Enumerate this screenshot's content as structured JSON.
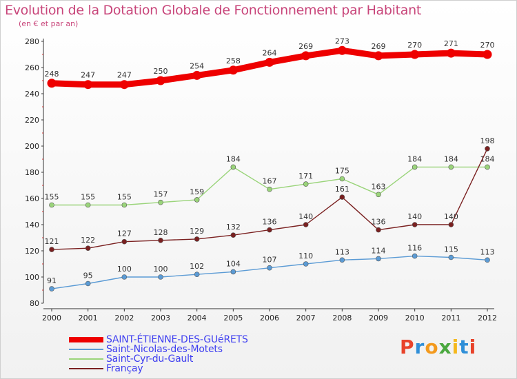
{
  "header": {
    "title": "Evolution de la Dotation Globale de Fonctionnement par Habitant",
    "subtitle": "(en € et par an)"
  },
  "brand": {
    "letters": [
      "P",
      "r",
      "o",
      "x",
      "i",
      "t",
      "i"
    ],
    "colors": [
      "#e8432a",
      "#2f8fd8",
      "#f39a1e",
      "#4aa83f",
      "#f5b81c",
      "#2f8fd8",
      "#e8432a"
    ]
  },
  "chart_data": {
    "type": "line",
    "title": "Evolution de la Dotation Globale de Fonctionnement par Habitant",
    "subtitle": "(en € et par an)",
    "xlabel": "",
    "ylabel": "",
    "ylim": [
      80,
      280
    ],
    "yticks": [
      80,
      100,
      120,
      140,
      160,
      180,
      200,
      220,
      240,
      260,
      280
    ],
    "grid": false,
    "legend": "bottom-left",
    "categories": [
      "2000",
      "2001",
      "2002",
      "2003",
      "2004",
      "2005",
      "2006",
      "2007",
      "2008",
      "2009",
      "2010",
      "2011",
      "2012"
    ],
    "series": [
      {
        "name": "SAINT-ÉTIENNE-DES-GUéRETS",
        "color": "#ee0000",
        "values": [
          248,
          247,
          247,
          250,
          254,
          258,
          264,
          269,
          273,
          269,
          270,
          271,
          270
        ]
      },
      {
        "name": "Saint-Nicolas-des-Motets",
        "color": "#5b9bd5",
        "values": [
          91,
          95,
          100,
          100,
          102,
          104,
          107,
          110,
          113,
          114,
          116,
          115,
          113
        ]
      },
      {
        "name": "Saint-Cyr-du-Gault",
        "color": "#9ad47a",
        "values": [
          155,
          155,
          155,
          157,
          159,
          184,
          167,
          171,
          175,
          163,
          184,
          184,
          184
        ]
      },
      {
        "name": "Françay",
        "color": "#7a2020",
        "values": [
          121,
          122,
          127,
          128,
          129,
          132,
          136,
          140,
          161,
          136,
          140,
          140,
          198
        ]
      }
    ]
  }
}
